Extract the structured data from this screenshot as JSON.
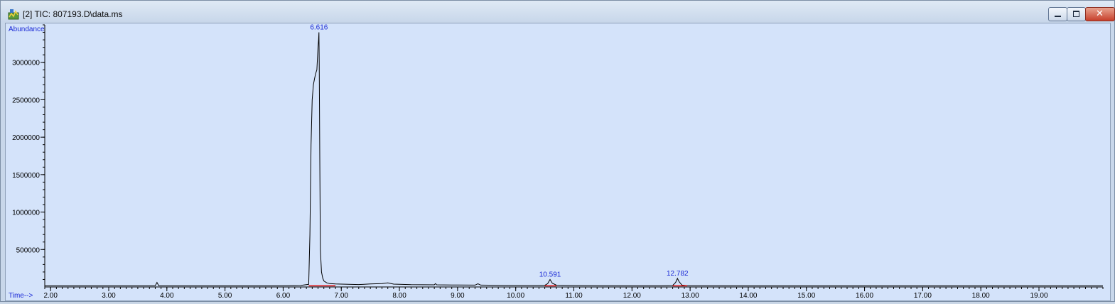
{
  "window": {
    "title": "[2] TIC: 807193.D\\data.ms",
    "app_icon": "chemstation-icon",
    "controls": [
      "minimize-icon",
      "maximize-icon",
      "close-icon"
    ]
  },
  "colors": {
    "plot_background": "#d4e3fa",
    "trace": "#000000",
    "peak_label": "#1c2bd6",
    "axis_label": "#1c2bd6",
    "baseline_marker": "#e01010"
  },
  "chart_data": {
    "type": "line",
    "title": "",
    "ylabel": "Abundance",
    "xlabel": "Time-->",
    "xlim": [
      1.9,
      20.1
    ],
    "ylim": [
      0,
      3500000
    ],
    "x_ticks": [
      2,
      3,
      4,
      5,
      6,
      7,
      8,
      9,
      10,
      11,
      12,
      13,
      14,
      15,
      16,
      17,
      18,
      19
    ],
    "x_tick_labels": [
      "2.00",
      "3.00",
      "4.00",
      "5.00",
      "6.00",
      "7.00",
      "8.00",
      "9.00",
      "10.00",
      "11.00",
      "12.00",
      "13.00",
      "14.00",
      "15.00",
      "16.00",
      "17.00",
      "18.00",
      "19.00"
    ],
    "y_ticks": [
      500000,
      1000000,
      1500000,
      2000000,
      2500000,
      3000000
    ],
    "y_tick_labels": [
      "500000",
      "1000000",
      "1500000",
      "2000000",
      "2500000",
      "3000000"
    ],
    "grid": false,
    "series": [
      {
        "x": [
          1.9,
          3.0,
          3.8,
          3.83,
          3.86,
          4.5,
          5.5,
          6.0,
          6.3,
          6.44,
          6.46,
          6.48,
          6.5,
          6.52,
          6.54,
          6.56,
          6.58,
          6.59,
          6.6,
          6.61,
          6.616,
          6.62,
          6.63,
          6.64,
          6.66,
          6.68,
          6.7,
          6.75,
          6.8,
          6.9,
          7.0,
          7.3,
          7.5,
          7.7,
          7.8,
          7.9,
          8.2,
          8.6,
          8.62,
          8.64,
          9.0,
          9.3,
          9.35,
          9.4,
          9.8,
          10.2,
          10.5,
          10.55,
          10.591,
          10.63,
          10.7,
          11.0,
          11.5,
          12.0,
          12.5,
          12.7,
          12.75,
          12.782,
          12.81,
          12.86,
          12.95,
          13.5,
          14.0,
          15.0,
          16.0,
          17.0,
          18.0,
          19.0,
          20.1
        ],
        "y": [
          15000,
          15000,
          15000,
          60000,
          15000,
          15000,
          15000,
          16000,
          20000,
          35000,
          700000,
          1900000,
          2500000,
          2700000,
          2780000,
          2850000,
          2900000,
          3050000,
          3200000,
          3300000,
          3400000,
          3000000,
          1700000,
          500000,
          200000,
          120000,
          80000,
          55000,
          45000,
          40000,
          38000,
          32000,
          40000,
          45000,
          55000,
          38000,
          30000,
          28000,
          45000,
          28000,
          26000,
          25000,
          42000,
          25000,
          22000,
          20000,
          22000,
          45000,
          100000,
          50000,
          24000,
          20000,
          18000,
          17000,
          17000,
          20000,
          60000,
          115000,
          70000,
          25000,
          17000,
          16000,
          15000,
          15000,
          15000,
          15000,
          15000,
          15000,
          15000
        ]
      }
    ],
    "peak_labels": [
      {
        "x": 6.616,
        "y": 3400000,
        "text": "6.616"
      },
      {
        "x": 10.591,
        "y": 100000,
        "text": "10.591"
      },
      {
        "x": 12.782,
        "y": 115000,
        "text": "12.782"
      }
    ],
    "baseline_marks": [
      {
        "x1": 6.44,
        "x2": 6.9
      },
      {
        "x1": 10.5,
        "x2": 10.7
      },
      {
        "x1": 12.7,
        "x2": 12.95
      }
    ]
  }
}
